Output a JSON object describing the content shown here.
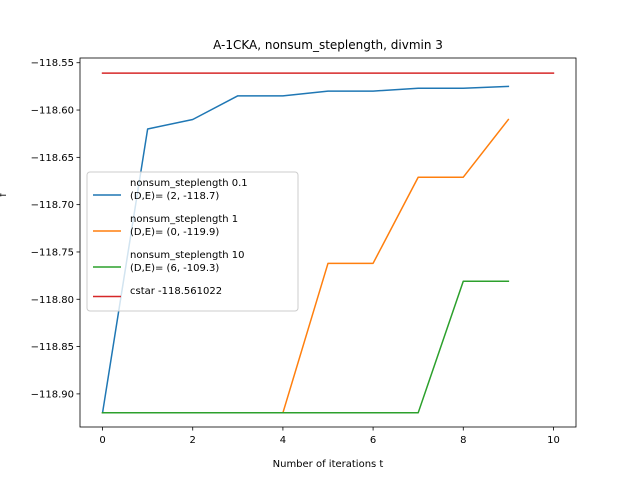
{
  "chart_data": {
    "type": "line",
    "title": "A-1CKA, nonsum_steplength, divmin 3",
    "xlabel": "Number of iterations t",
    "ylabel": "f",
    "xlim": [
      -0.5,
      10.5
    ],
    "ylim": [
      -118.935,
      -118.545
    ],
    "xticks": [
      0,
      2,
      4,
      6,
      8,
      10
    ],
    "yticks": [
      -118.9,
      -118.85,
      -118.8,
      -118.75,
      -118.7,
      -118.65,
      -118.6,
      -118.55
    ],
    "xtick_labels": [
      "0",
      "2",
      "4",
      "6",
      "8",
      "10"
    ],
    "ytick_labels": [
      "−118.90",
      "−118.85",
      "−118.80",
      "−118.75",
      "−118.70",
      "−118.65",
      "−118.60",
      "−118.55"
    ],
    "series": [
      {
        "name": "nonsum_steplength 0.1",
        "legend_lines": [
          "nonsum_steplength 0.1",
          "(D,E)= (2, -118.7)"
        ],
        "color": "#1f77b4",
        "x": [
          0,
          1,
          2,
          3,
          4,
          5,
          6,
          7,
          8,
          9
        ],
        "y": [
          -118.92,
          -118.62,
          -118.61,
          -118.585,
          -118.585,
          -118.58,
          -118.58,
          -118.577,
          -118.577,
          -118.575
        ]
      },
      {
        "name": "nonsum_steplength 1",
        "legend_lines": [
          "nonsum_steplength 1",
          "(D,E)= (0, -119.9)"
        ],
        "color": "#ff7f0e",
        "x": [
          0,
          1,
          2,
          3,
          4,
          5,
          6,
          7,
          8,
          9
        ],
        "y": [
          -118.92,
          -118.92,
          -118.92,
          -118.92,
          -118.92,
          -118.762,
          -118.762,
          -118.671,
          -118.671,
          -118.61
        ]
      },
      {
        "name": "nonsum_steplength 10",
        "legend_lines": [
          "nonsum_steplength 10",
          "(D,E)= (6, -109.3)"
        ],
        "color": "#2ca02c",
        "x": [
          0,
          1,
          2,
          3,
          4,
          5,
          6,
          7,
          8,
          9
        ],
        "y": [
          -118.92,
          -118.92,
          -118.92,
          -118.92,
          -118.92,
          -118.92,
          -118.92,
          -118.92,
          -118.781,
          -118.781
        ]
      },
      {
        "name": "cstar -118.561022",
        "legend_lines": [
          "cstar -118.561022"
        ],
        "color": "#d62728",
        "x": [
          0,
          10
        ],
        "y": [
          -118.561022,
          -118.561022
        ]
      }
    ],
    "legend_position": "center-left",
    "grid": false
  }
}
